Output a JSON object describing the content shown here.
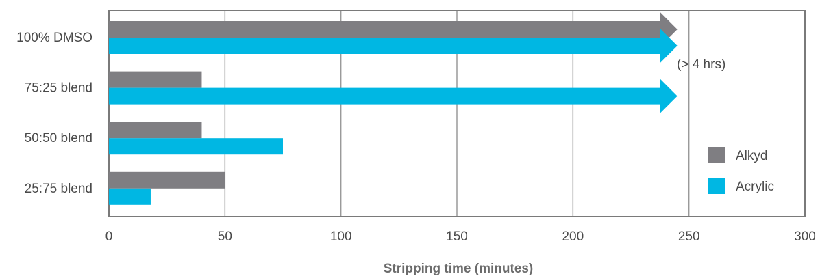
{
  "chart_data": {
    "type": "bar",
    "orientation": "horizontal",
    "categories": [
      "100% DMSO",
      "75:25 blend",
      "50:50 blend",
      "25:75 blend"
    ],
    "series": [
      {
        "name": "Alkyd",
        "color": "#7f7e82",
        "values": [
          245,
          40,
          40,
          50
        ],
        "arrow": [
          true,
          false,
          false,
          false
        ]
      },
      {
        "name": "Acrylic",
        "color": "#00b7e3",
        "values": [
          245,
          245,
          75,
          18
        ],
        "arrow": [
          true,
          true,
          false,
          false
        ]
      }
    ],
    "xlabel": "Stripping time (minutes)",
    "xlim": [
      0,
      300
    ],
    "xticks": [
      0,
      50,
      100,
      150,
      200,
      250,
      300
    ],
    "grid": true,
    "legend_position": "right",
    "annotation": "(> 4 hrs)"
  }
}
